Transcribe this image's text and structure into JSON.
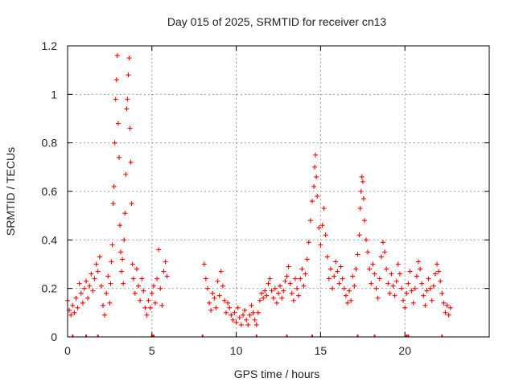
{
  "chart_data": {
    "type": "scatter",
    "title": "Day 015 of 2025, SRMTID for receiver cn13",
    "xlabel": "GPS time / hours",
    "ylabel": "SRMTID / TECUs",
    "xlim": [
      0,
      25
    ],
    "ylim": [
      0,
      1.2
    ],
    "xticks": [
      0,
      5,
      10,
      15,
      20
    ],
    "xtick_labels": [
      "0",
      "5",
      "10",
      "15",
      "20"
    ],
    "yticks": [
      0,
      0.2,
      0.4,
      0.6,
      0.8,
      1.0,
      1.2
    ],
    "ytick_labels": [
      "0",
      "0.2",
      "0.4",
      "0.6",
      "0.8",
      "1",
      "1.2"
    ],
    "grid": true,
    "marker": "+",
    "color": "#ff0000",
    "series": [
      {
        "name": "SRMTID",
        "points": [
          [
            0.0,
            0.15
          ],
          [
            0.1,
            0.11
          ],
          [
            0.2,
            0.09
          ],
          [
            0.3,
            0.13
          ],
          [
            0.4,
            0.1
          ],
          [
            0.5,
            0.16
          ],
          [
            0.6,
            0.12
          ],
          [
            0.7,
            0.22
          ],
          [
            0.8,
            0.18
          ],
          [
            0.9,
            0.14
          ],
          [
            1.0,
            0.2
          ],
          [
            1.1,
            0.23
          ],
          [
            1.2,
            0.16
          ],
          [
            1.3,
            0.21
          ],
          [
            1.4,
            0.26
          ],
          [
            1.5,
            0.19
          ],
          [
            1.6,
            0.24
          ],
          [
            1.7,
            0.3
          ],
          [
            1.8,
            0.27
          ],
          [
            1.9,
            0.33
          ],
          [
            2.0,
            0.21
          ],
          [
            2.1,
            0.13
          ],
          [
            2.2,
            0.09
          ],
          [
            2.3,
            0.18
          ],
          [
            2.4,
            0.25
          ],
          [
            2.5,
            0.14
          ],
          [
            2.55,
            0.22
          ],
          [
            2.6,
            0.31
          ],
          [
            2.65,
            0.38
          ],
          [
            2.7,
            0.55
          ],
          [
            2.75,
            0.62
          ],
          [
            2.8,
            0.8
          ],
          [
            2.85,
            0.98
          ],
          [
            2.9,
            1.06
          ],
          [
            2.95,
            1.16
          ],
          [
            3.0,
            0.88
          ],
          [
            3.05,
            0.74
          ],
          [
            3.1,
            0.46
          ],
          [
            3.15,
            0.35
          ],
          [
            3.2,
            0.27
          ],
          [
            3.25,
            0.32
          ],
          [
            3.3,
            0.22
          ],
          [
            3.35,
            0.4
          ],
          [
            3.4,
            0.51
          ],
          [
            3.45,
            0.67
          ],
          [
            3.5,
            0.94
          ],
          [
            3.55,
            0.98
          ],
          [
            3.6,
            1.08
          ],
          [
            3.65,
            1.15
          ],
          [
            3.7,
            0.86
          ],
          [
            3.75,
            0.72
          ],
          [
            3.8,
            0.55
          ],
          [
            3.85,
            0.3
          ],
          [
            3.9,
            0.24
          ],
          [
            4.0,
            0.18
          ],
          [
            4.1,
            0.28
          ],
          [
            4.2,
            0.21
          ],
          [
            4.3,
            0.15
          ],
          [
            4.4,
            0.24
          ],
          [
            4.5,
            0.19
          ],
          [
            4.6,
            0.12
          ],
          [
            4.7,
            0.09
          ],
          [
            4.8,
            0.15
          ],
          [
            4.9,
            0.12
          ],
          [
            5.0,
            0.18
          ],
          [
            5.1,
            0.21
          ],
          [
            5.2,
            0.14
          ],
          [
            5.3,
            0.24
          ],
          [
            5.4,
            0.36
          ],
          [
            5.5,
            0.2
          ],
          [
            5.6,
            0.13
          ],
          [
            5.7,
            0.27
          ],
          [
            5.8,
            0.31
          ],
          [
            5.9,
            0.25
          ],
          [
            8.1,
            0.3
          ],
          [
            8.2,
            0.24
          ],
          [
            8.3,
            0.2
          ],
          [
            8.4,
            0.14
          ],
          [
            8.5,
            0.11
          ],
          [
            8.6,
            0.18
          ],
          [
            8.7,
            0.16
          ],
          [
            8.8,
            0.12
          ],
          [
            8.9,
            0.23
          ],
          [
            9.0,
            0.17
          ],
          [
            9.1,
            0.27
          ],
          [
            9.2,
            0.21
          ],
          [
            9.3,
            0.15
          ],
          [
            9.4,
            0.1
          ],
          [
            9.5,
            0.14
          ],
          [
            9.6,
            0.12
          ],
          [
            9.7,
            0.09
          ],
          [
            9.8,
            0.07
          ],
          [
            9.9,
            0.1
          ],
          [
            10.0,
            0.06
          ],
          [
            10.1,
            0.12
          ],
          [
            10.2,
            0.08
          ],
          [
            10.3,
            0.05
          ],
          [
            10.4,
            0.09
          ],
          [
            10.5,
            0.11
          ],
          [
            10.6,
            0.07
          ],
          [
            10.7,
            0.05
          ],
          [
            10.8,
            0.09
          ],
          [
            10.9,
            0.13
          ],
          [
            11.0,
            0.1
          ],
          [
            11.1,
            0.07
          ],
          [
            11.2,
            0.05
          ],
          [
            11.3,
            0.1
          ],
          [
            11.4,
            0.15
          ],
          [
            11.5,
            0.18
          ],
          [
            11.6,
            0.16
          ],
          [
            11.7,
            0.19
          ],
          [
            11.8,
            0.17
          ],
          [
            11.9,
            0.22
          ],
          [
            12.0,
            0.24
          ],
          [
            12.1,
            0.19
          ],
          [
            12.2,
            0.16
          ],
          [
            12.3,
            0.2
          ],
          [
            12.4,
            0.14
          ],
          [
            12.5,
            0.18
          ],
          [
            12.6,
            0.21
          ],
          [
            12.7,
            0.16
          ],
          [
            12.8,
            0.19
          ],
          [
            12.9,
            0.23
          ],
          [
            13.0,
            0.25
          ],
          [
            13.1,
            0.29
          ],
          [
            13.2,
            0.22
          ],
          [
            13.3,
            0.18
          ],
          [
            13.4,
            0.15
          ],
          [
            13.5,
            0.24
          ],
          [
            13.6,
            0.2
          ],
          [
            13.7,
            0.17
          ],
          [
            13.8,
            0.24
          ],
          [
            13.9,
            0.28
          ],
          [
            14.0,
            0.21
          ],
          [
            14.1,
            0.26
          ],
          [
            14.2,
            0.32
          ],
          [
            14.3,
            0.39
          ],
          [
            14.4,
            0.48
          ],
          [
            14.5,
            0.56
          ],
          [
            14.6,
            0.62
          ],
          [
            14.65,
            0.7
          ],
          [
            14.7,
            0.75
          ],
          [
            14.75,
            0.66
          ],
          [
            14.8,
            0.58
          ],
          [
            14.9,
            0.45
          ],
          [
            15.0,
            0.38
          ],
          [
            15.1,
            0.46
          ],
          [
            15.2,
            0.53
          ],
          [
            15.3,
            0.42
          ],
          [
            15.4,
            0.33
          ],
          [
            15.5,
            0.24
          ],
          [
            15.6,
            0.28
          ],
          [
            15.7,
            0.2
          ],
          [
            15.8,
            0.25
          ],
          [
            15.9,
            0.31
          ],
          [
            16.0,
            0.27
          ],
          [
            16.1,
            0.22
          ],
          [
            16.2,
            0.29
          ],
          [
            16.3,
            0.24
          ],
          [
            16.4,
            0.2
          ],
          [
            16.5,
            0.17
          ],
          [
            16.6,
            0.14
          ],
          [
            16.7,
            0.19
          ],
          [
            16.8,
            0.15
          ],
          [
            16.9,
            0.25
          ],
          [
            17.0,
            0.21
          ],
          [
            17.1,
            0.28
          ],
          [
            17.2,
            0.34
          ],
          [
            17.3,
            0.42
          ],
          [
            17.35,
            0.53
          ],
          [
            17.4,
            0.6
          ],
          [
            17.45,
            0.66
          ],
          [
            17.5,
            0.64
          ],
          [
            17.55,
            0.57
          ],
          [
            17.6,
            0.48
          ],
          [
            17.7,
            0.4
          ],
          [
            17.8,
            0.35
          ],
          [
            17.9,
            0.28
          ],
          [
            18.0,
            0.22
          ],
          [
            18.1,
            0.3
          ],
          [
            18.2,
            0.26
          ],
          [
            18.3,
            0.2
          ],
          [
            18.4,
            0.16
          ],
          [
            18.5,
            0.24
          ],
          [
            18.6,
            0.33
          ],
          [
            18.7,
            0.39
          ],
          [
            18.8,
            0.35
          ],
          [
            18.9,
            0.28
          ],
          [
            19.0,
            0.22
          ],
          [
            19.1,
            0.18
          ],
          [
            19.2,
            0.26
          ],
          [
            19.3,
            0.21
          ],
          [
            19.4,
            0.17
          ],
          [
            19.5,
            0.23
          ],
          [
            19.6,
            0.3
          ],
          [
            19.7,
            0.26
          ],
          [
            19.8,
            0.2
          ],
          [
            19.9,
            0.15
          ],
          [
            20.0,
            0.12
          ],
          [
            20.1,
            0.18
          ],
          [
            20.2,
            0.22
          ],
          [
            20.3,
            0.27
          ],
          [
            20.4,
            0.19
          ],
          [
            20.5,
            0.14
          ],
          [
            20.6,
            0.2
          ],
          [
            20.7,
            0.25
          ],
          [
            20.8,
            0.31
          ],
          [
            20.9,
            0.28
          ],
          [
            21.0,
            0.22
          ],
          [
            21.1,
            0.17
          ],
          [
            21.2,
            0.13
          ],
          [
            21.3,
            0.19
          ],
          [
            21.4,
            0.24
          ],
          [
            21.5,
            0.2
          ],
          [
            21.6,
            0.15
          ],
          [
            21.7,
            0.21
          ],
          [
            21.8,
            0.26
          ],
          [
            21.9,
            0.3
          ],
          [
            22.0,
            0.27
          ],
          [
            22.1,
            0.23
          ],
          [
            22.2,
            0.18
          ],
          [
            22.3,
            0.14
          ],
          [
            22.4,
            0.1
          ],
          [
            22.5,
            0.13
          ],
          [
            22.6,
            0.09
          ],
          [
            22.7,
            0.12
          ]
        ]
      }
    ],
    "rug_x": [
      0.3,
      1.1,
      1.8,
      5.0,
      5.1,
      8.0,
      11.2,
      13.0,
      14.5,
      17.2,
      18.2,
      20.1,
      20.2,
      22.2
    ]
  }
}
